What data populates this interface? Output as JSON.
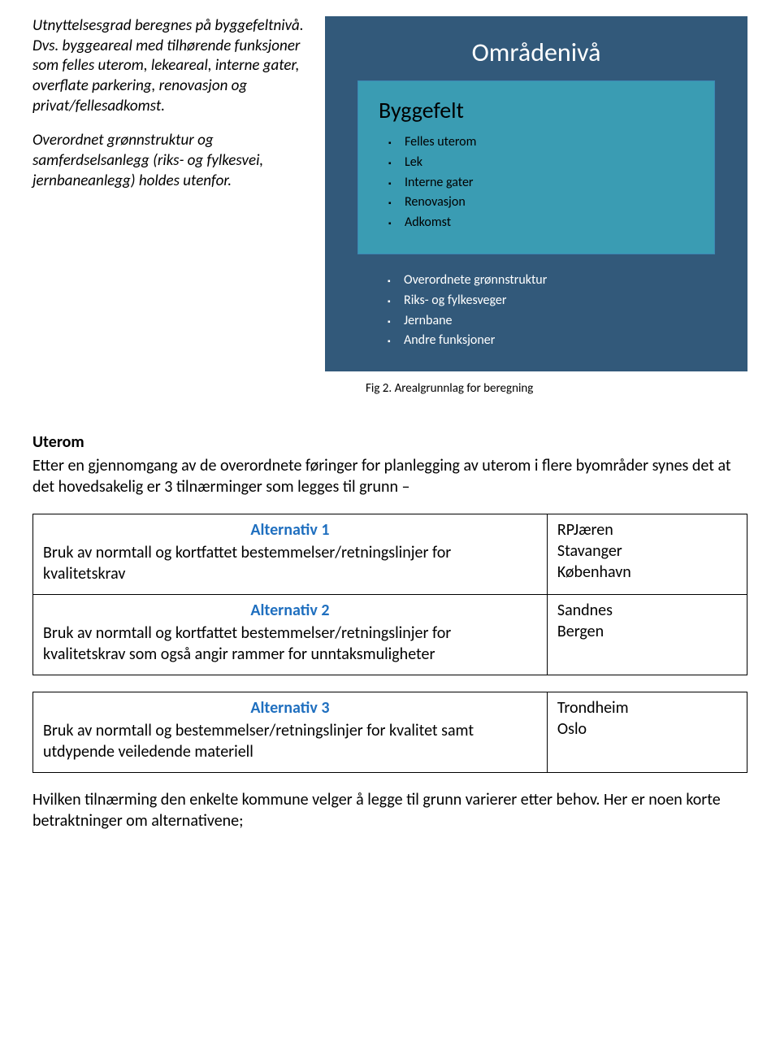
{
  "leftParagraphs": {
    "p1": "Utnyttelsesgrad beregnes på byggefeltnivå. Dvs. byggeareal med tilhørende funksjoner som felles uterom, lekeareal, interne gater, overflate parkering, renovasjon og privat/fellesadkomst.",
    "p2": "Overordnet grønnstruktur og samferdselsanlegg (riks- og fylkesvei, jernbaneanlegg) holdes utenfor."
  },
  "diagram": {
    "title": "Områdenivå",
    "bg_color": "#32597a",
    "innerBox": {
      "title": "Byggefelt",
      "bg_color": "#3a9cb3",
      "items": [
        "Felles uterom",
        "Lek",
        "Interne gater",
        "Renovasjon",
        "Adkomst"
      ]
    },
    "outerItems": [
      "Overordnete grønnstruktur",
      "Riks- og fylkesveger",
      "Jernbane",
      "Andre funksjoner"
    ]
  },
  "caption": "Fig 2. Arealgrunnlag for beregning",
  "uterom": {
    "heading": "Uterom",
    "intro": "Etter en gjennomgang av de overordnete føringer for planlegging av uterom i flere byområder synes det at det hovedsakelig er 3 tilnærminger som legges til grunn –"
  },
  "altHeaderColor": "#1f6fbf",
  "alternatives": [
    {
      "title": "Alternativ 1",
      "desc": "Bruk av normtall og kortfattet bestemmelser/retningslinjer for kvalitetskrav",
      "cities": "RPJæren\nStavanger\nKøbenhavn"
    },
    {
      "title": "Alternativ 2",
      "desc": "Bruk av normtall og kortfattet bestemmelser/retningslinjer for kvalitetskrav som også angir rammer for unntaksmuligheter",
      "cities": "Sandnes\nBergen"
    },
    {
      "title": "Alternativ 3",
      "desc": "Bruk av normtall og bestemmelser/retningslinjer for kvalitet samt utdypende veiledende materiell",
      "cities": "Trondheim\nOslo"
    }
  ],
  "footer": "Hvilken tilnærming den enkelte kommune velger å legge til grunn varierer etter behov. Her er noen korte betraktninger om alternativene;"
}
